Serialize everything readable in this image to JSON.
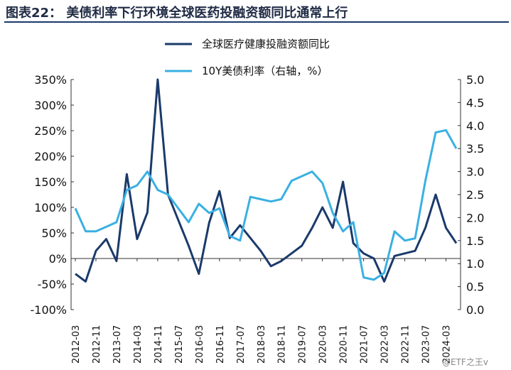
{
  "title": "图表22：   美债利率下行环境全球医药投融资额同比通常上行",
  "watermark": "@ETF之王v",
  "colors": {
    "title": "#1f2a44",
    "rule": "#1b3a6b",
    "series_dark": "#1b3a6b",
    "series_light": "#3ab0e2"
  },
  "chart_data": {
    "type": "line",
    "x": [
      "2012-03",
      "2012-07",
      "2012-11",
      "2013-03",
      "2013-07",
      "2013-11",
      "2014-03",
      "2014-07",
      "2014-11",
      "2015-03",
      "2015-07",
      "2015-11",
      "2016-03",
      "2016-07",
      "2016-11",
      "2017-03",
      "2017-07",
      "2017-11",
      "2018-03",
      "2018-07",
      "2018-11",
      "2019-03",
      "2019-07",
      "2019-11",
      "2020-03",
      "2020-07",
      "2020-11",
      "2021-03",
      "2021-07",
      "2021-11",
      "2022-03",
      "2022-07",
      "2022-11",
      "2023-03",
      "2023-07",
      "2023-11",
      "2024-03",
      "2024-07"
    ],
    "x_tick_labels": [
      "2012-03",
      "2012-11",
      "2013-07",
      "2014-03",
      "2014-11",
      "2015-07",
      "2016-03",
      "2016-11",
      "2017-07",
      "2018-03",
      "2018-11",
      "2019-07",
      "2020-03",
      "2020-11",
      "2021-07",
      "2022-03",
      "2022-11",
      "2023-07",
      "2024-03"
    ],
    "left_axis": {
      "min": -100,
      "max": 350,
      "ticks": [
        "350%",
        "300%",
        "250%",
        "200%",
        "150%",
        "100%",
        "50%",
        "0%",
        "-50%",
        "-100%"
      ]
    },
    "right_axis": {
      "min": 0.0,
      "max": 5.0,
      "ticks": [
        "5.0",
        "4.5",
        "4.0",
        "3.5",
        "3.0",
        "2.5",
        "2.0",
        "1.5",
        "1.0",
        "0.5",
        "0.0"
      ]
    },
    "legend_position": "top-center",
    "series": [
      {
        "name": "全球医疗健康投融资额同比",
        "axis": "left",
        "color": "#1b3a6b",
        "values": [
          -30,
          -45,
          15,
          38,
          -5,
          165,
          38,
          90,
          350,
          125,
          75,
          25,
          -30,
          70,
          132,
          40,
          65,
          40,
          15,
          -15,
          -5,
          10,
          25,
          60,
          100,
          60,
          150,
          30,
          10,
          0,
          -45,
          5,
          10,
          15,
          60,
          125,
          60,
          30
        ]
      },
      {
        "name": "10Y美债利率（右轴，%）",
        "axis": "right",
        "color": "#3ab0e2",
        "values": [
          2.2,
          1.7,
          1.7,
          1.8,
          1.9,
          2.6,
          2.7,
          3.0,
          2.6,
          2.5,
          2.2,
          1.9,
          2.3,
          2.1,
          2.2,
          1.6,
          1.5,
          2.45,
          2.4,
          2.35,
          2.4,
          2.8,
          2.9,
          3.0,
          2.75,
          2.1,
          1.7,
          1.9,
          0.7,
          0.65,
          0.8,
          1.7,
          1.5,
          1.55,
          2.8,
          3.85,
          3.9,
          3.5
        ]
      }
    ]
  }
}
